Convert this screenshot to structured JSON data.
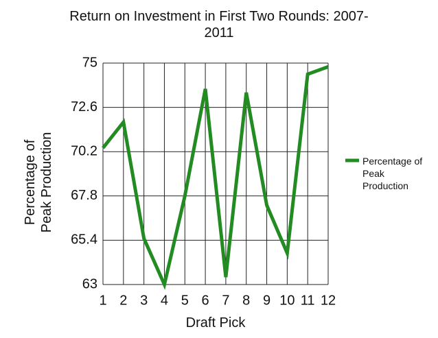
{
  "chart_data": {
    "type": "line",
    "title": "Return on Investment in First Two Rounds: 2007-2011",
    "x_label": "Draft Pick",
    "y_label": "Percentage of Peak Production",
    "x": [
      1,
      2,
      3,
      4,
      5,
      6,
      7,
      8,
      9,
      10,
      11,
      12
    ],
    "series": [
      {
        "name": "Percentage of Peak Production",
        "color": "#228b22",
        "values": [
          70.4,
          71.8,
          65.5,
          63.0,
          67.8,
          73.6,
          63.4,
          73.4,
          67.3,
          64.7,
          74.4,
          74.8
        ]
      }
    ],
    "xlim": [
      1,
      12
    ],
    "xticks": [
      1,
      2,
      3,
      4,
      5,
      6,
      7,
      8,
      9,
      10,
      11,
      12
    ],
    "ylim": [
      63,
      75
    ],
    "yticks": [
      63,
      65.4,
      67.8,
      70.2,
      72.6,
      75
    ],
    "grid": true,
    "legend": "right"
  }
}
